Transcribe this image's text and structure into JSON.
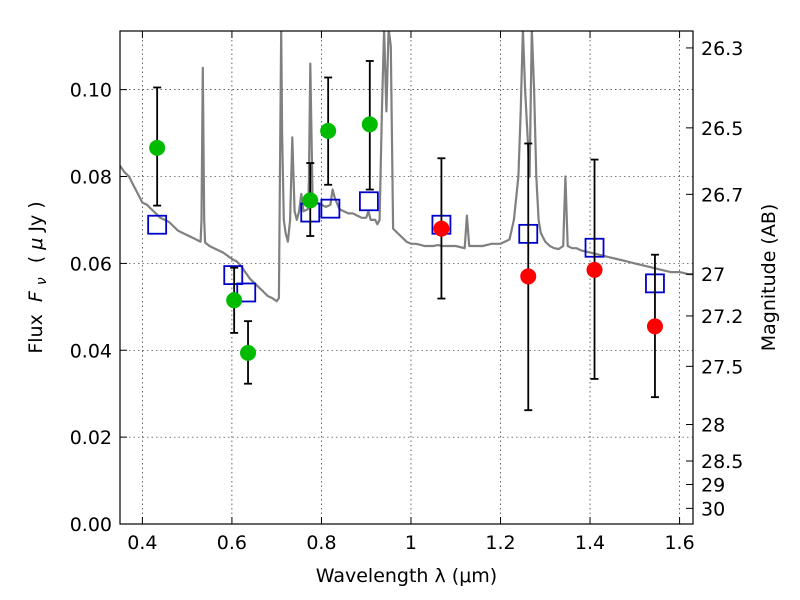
{
  "chart_data": {
    "type": "scatter",
    "title": "",
    "xlabel": "Wavelength  λ (μm)",
    "ylabel": "Flux  F_ν  ( μJy )",
    "ylabel_parts": {
      "prefix": "Flux ",
      "symbol": "F",
      "subscript": "ν",
      "open": "( ",
      "mu": "μ",
      "unit": "Jy )"
    },
    "y2label": "Magnitude (AB)",
    "xlim": [
      0.35,
      1.63
    ],
    "ylim": [
      0.0,
      0.1135
    ],
    "grid": true,
    "x_ticks": [
      0.4,
      0.6,
      0.8,
      1.0,
      1.2,
      1.4,
      1.6
    ],
    "x_tick_labels": [
      "0.4",
      "0.6",
      "0.8",
      "1",
      "1.2",
      "1.4",
      "1.6"
    ],
    "y_ticks": [
      0.0,
      0.02,
      0.04,
      0.06,
      0.08,
      0.1
    ],
    "y_tick_labels": [
      "0.00",
      "0.02",
      "0.04",
      "0.06",
      "0.08",
      "0.10"
    ],
    "y2_ticks": [
      {
        "label": "26.3",
        "flux": 0.1096
      },
      {
        "label": "26.5",
        "flux": 0.0912
      },
      {
        "label": "26.7",
        "flux": 0.0759
      },
      {
        "label": "27",
        "flux": 0.0575
      },
      {
        "label": "27.2",
        "flux": 0.0479
      },
      {
        "label": "27.5",
        "flux": 0.0363
      },
      {
        "label": "28",
        "flux": 0.0229
      },
      {
        "label": "28.5",
        "flux": 0.0145
      },
      {
        "label": "29",
        "flux": 0.0091
      },
      {
        "label": "30",
        "flux": 0.0036
      }
    ],
    "series": [
      {
        "name": "model spectrum",
        "kind": "line",
        "color": "#808080",
        "points": [
          [
            0.35,
            0.0825
          ],
          [
            0.36,
            0.081
          ],
          [
            0.37,
            0.08
          ],
          [
            0.38,
            0.078
          ],
          [
            0.39,
            0.076
          ],
          [
            0.4,
            0.074
          ],
          [
            0.41,
            0.0735
          ],
          [
            0.42,
            0.0725
          ],
          [
            0.43,
            0.0715
          ],
          [
            0.44,
            0.0705
          ],
          [
            0.45,
            0.07
          ],
          [
            0.46,
            0.0695
          ],
          [
            0.47,
            0.0685
          ],
          [
            0.48,
            0.0675
          ],
          [
            0.49,
            0.067
          ],
          [
            0.5,
            0.0665
          ],
          [
            0.51,
            0.066
          ],
          [
            0.52,
            0.0655
          ],
          [
            0.53,
            0.065
          ],
          [
            0.532,
            0.07
          ],
          [
            0.535,
            0.105
          ],
          [
            0.538,
            0.07
          ],
          [
            0.54,
            0.0648
          ],
          [
            0.55,
            0.064
          ],
          [
            0.56,
            0.0635
          ],
          [
            0.57,
            0.063
          ],
          [
            0.58,
            0.0625
          ],
          [
            0.59,
            0.0618
          ],
          [
            0.6,
            0.061
          ],
          [
            0.61,
            0.0605
          ],
          [
            0.62,
            0.0595
          ],
          [
            0.63,
            0.058
          ],
          [
            0.64,
            0.0565
          ],
          [
            0.65,
            0.0555
          ],
          [
            0.66,
            0.0545
          ],
          [
            0.67,
            0.0535
          ],
          [
            0.68,
            0.0525
          ],
          [
            0.69,
            0.052
          ],
          [
            0.7,
            0.0513
          ],
          [
            0.705,
            0.052
          ],
          [
            0.708,
            0.09
          ],
          [
            0.71,
            0.114
          ],
          [
            0.712,
            0.09
          ],
          [
            0.716,
            0.07
          ],
          [
            0.72,
            0.067
          ],
          [
            0.725,
            0.065
          ],
          [
            0.73,
            0.07
          ],
          [
            0.735,
            0.089
          ],
          [
            0.74,
            0.072
          ],
          [
            0.745,
            0.07
          ],
          [
            0.75,
            0.072
          ],
          [
            0.755,
            0.076
          ],
          [
            0.76,
            0.072
          ],
          [
            0.77,
            0.0725
          ],
          [
            0.772,
            0.079
          ],
          [
            0.775,
            0.106
          ],
          [
            0.78,
            0.076
          ],
          [
            0.79,
            0.074
          ],
          [
            0.8,
            0.0735
          ],
          [
            0.81,
            0.073
          ],
          [
            0.82,
            0.0735
          ],
          [
            0.825,
            0.077
          ],
          [
            0.83,
            0.075
          ],
          [
            0.84,
            0.0725
          ],
          [
            0.85,
            0.072
          ],
          [
            0.86,
            0.0715
          ],
          [
            0.87,
            0.0715
          ],
          [
            0.88,
            0.071
          ],
          [
            0.89,
            0.0705
          ],
          [
            0.9,
            0.0705
          ],
          [
            0.905,
            0.072
          ],
          [
            0.91,
            0.07
          ],
          [
            0.92,
            0.07
          ],
          [
            0.925,
            0.069
          ],
          [
            0.93,
            0.07
          ],
          [
            0.935,
            0.095
          ],
          [
            0.94,
            0.114
          ],
          [
            0.945,
            0.095
          ],
          [
            0.95,
            0.114
          ],
          [
            0.955,
            0.11
          ],
          [
            0.96,
            0.068
          ],
          [
            0.97,
            0.067
          ],
          [
            0.98,
            0.066
          ],
          [
            0.99,
            0.065
          ],
          [
            1.0,
            0.0645
          ],
          [
            1.01,
            0.0645
          ],
          [
            1.02,
            0.0643
          ],
          [
            1.03,
            0.064
          ],
          [
            1.04,
            0.064
          ],
          [
            1.05,
            0.064
          ],
          [
            1.06,
            0.0642
          ],
          [
            1.07,
            0.064
          ],
          [
            1.08,
            0.064
          ],
          [
            1.09,
            0.064
          ],
          [
            1.1,
            0.064
          ],
          [
            1.12,
            0.0635
          ],
          [
            1.125,
            0.071
          ],
          [
            1.13,
            0.064
          ],
          [
            1.14,
            0.064
          ],
          [
            1.16,
            0.064
          ],
          [
            1.18,
            0.0645
          ],
          [
            1.2,
            0.0645
          ],
          [
            1.22,
            0.0655
          ],
          [
            1.23,
            0.07
          ],
          [
            1.24,
            0.08
          ],
          [
            1.245,
            0.095
          ],
          [
            1.25,
            0.114
          ],
          [
            1.255,
            0.1
          ],
          [
            1.26,
            0.09
          ],
          [
            1.265,
            0.08
          ],
          [
            1.27,
            0.114
          ],
          [
            1.275,
            0.1
          ],
          [
            1.28,
            0.08
          ],
          [
            1.285,
            0.07
          ],
          [
            1.29,
            0.067
          ],
          [
            1.3,
            0.065
          ],
          [
            1.31,
            0.064
          ],
          [
            1.32,
            0.0635
          ],
          [
            1.33,
            0.0633
          ],
          [
            1.34,
            0.064
          ],
          [
            1.345,
            0.08
          ],
          [
            1.35,
            0.064
          ],
          [
            1.36,
            0.0635
          ],
          [
            1.37,
            0.0635
          ],
          [
            1.38,
            0.063
          ],
          [
            1.4,
            0.0625
          ],
          [
            1.42,
            0.062
          ],
          [
            1.44,
            0.0615
          ],
          [
            1.46,
            0.061
          ],
          [
            1.48,
            0.0605
          ],
          [
            1.5,
            0.06
          ],
          [
            1.52,
            0.0595
          ],
          [
            1.54,
            0.059
          ],
          [
            1.56,
            0.0585
          ],
          [
            1.58,
            0.058
          ],
          [
            1.6,
            0.058
          ],
          [
            1.62,
            0.0575
          ],
          [
            1.63,
            0.0575
          ]
        ]
      },
      {
        "name": "model flux (squares)",
        "kind": "square",
        "color": "#0000cc",
        "points": [
          [
            0.433,
            0.0689
          ],
          [
            0.603,
            0.0573
          ],
          [
            0.632,
            0.0533
          ],
          [
            0.775,
            0.0717
          ],
          [
            0.82,
            0.0726
          ],
          [
            0.906,
            0.0743
          ],
          [
            1.068,
            0.0689
          ],
          [
            1.262,
            0.0668
          ],
          [
            1.41,
            0.0636
          ],
          [
            1.545,
            0.0554
          ]
        ]
      },
      {
        "name": "observed (green)",
        "kind": "point_with_error",
        "color": "#00bb00",
        "points": [
          {
            "x": 0.433,
            "y": 0.0866,
            "ylo": 0.0733,
            "yhi": 0.1005
          },
          {
            "x": 0.605,
            "y": 0.0515,
            "ylo": 0.044,
            "yhi": 0.059
          },
          {
            "x": 0.636,
            "y": 0.0394,
            "ylo": 0.0323,
            "yhi": 0.0467
          },
          {
            "x": 0.775,
            "y": 0.0745,
            "ylo": 0.0663,
            "yhi": 0.0831
          },
          {
            "x": 0.815,
            "y": 0.0905,
            "ylo": 0.0781,
            "yhi": 0.1028
          },
          {
            "x": 0.908,
            "y": 0.092,
            "ylo": 0.077,
            "yhi": 0.1066
          }
        ]
      },
      {
        "name": "observed (red)",
        "kind": "point_with_error",
        "color": "#ff0000",
        "points": [
          {
            "x": 1.068,
            "y": 0.068,
            "ylo": 0.0519,
            "yhi": 0.0842
          },
          {
            "x": 1.262,
            "y": 0.057,
            "ylo": 0.0262,
            "yhi": 0.0876
          },
          {
            "x": 1.41,
            "y": 0.0585,
            "ylo": 0.0334,
            "yhi": 0.0839
          },
          {
            "x": 1.545,
            "y": 0.0455,
            "ylo": 0.0292,
            "yhi": 0.062
          }
        ]
      }
    ]
  }
}
